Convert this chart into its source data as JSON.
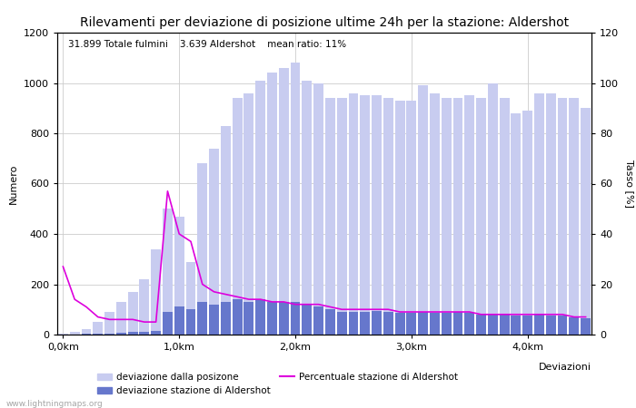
{
  "title": "Rilevamenti per deviazione di posizione ultime 24h per la stazione: Aldershot",
  "subtitle": "31.899 Totale fulmini    3.639 Aldershot    mean ratio: 11%",
  "xlabel": "Deviazioni",
  "ylabel_left": "Numero",
  "ylabel_right": "Tasso [%]",
  "watermark": "www.lightningmaps.org",
  "legend_labels": [
    "deviazione dalla posizone",
    "deviazione stazione di Aldershot",
    "Percentuale stazione di Aldershot"
  ],
  "legend_colors": [
    "#c8ccf0",
    "#6677cc",
    "#dd00dd"
  ],
  "xtick_labels": [
    "0,0km",
    "1,0km",
    "2,0km",
    "3,0km",
    "4,0km"
  ],
  "xtick_positions": [
    0,
    10,
    20,
    30,
    40
  ],
  "ylim_left": [
    0,
    1200
  ],
  "ylim_right": [
    0,
    120
  ],
  "yticks_left": [
    0,
    200,
    400,
    600,
    800,
    1000,
    1200
  ],
  "yticks_right": [
    0,
    20,
    40,
    60,
    80,
    100,
    120
  ],
  "light_bars": [
    5,
    10,
    20,
    50,
    90,
    130,
    170,
    220,
    340,
    500,
    470,
    290,
    680,
    740,
    830,
    940,
    960,
    1010,
    1040,
    1060,
    1080,
    1010,
    1000,
    940,
    940,
    960,
    950,
    950,
    940,
    930,
    930,
    990,
    960,
    940,
    940,
    950,
    940,
    1000,
    940,
    880,
    890,
    960,
    960,
    940,
    940,
    900
  ],
  "dark_bars": [
    1,
    1,
    2,
    3,
    5,
    8,
    10,
    12,
    15,
    90,
    110,
    100,
    130,
    120,
    130,
    140,
    130,
    140,
    130,
    130,
    130,
    120,
    110,
    100,
    90,
    90,
    90,
    95,
    90,
    85,
    85,
    90,
    85,
    85,
    90,
    85,
    80,
    80,
    80,
    75,
    75,
    80,
    75,
    75,
    70,
    65
  ],
  "ratio_line": [
    27,
    14,
    11,
    7,
    6,
    6,
    6,
    5,
    5,
    57,
    40,
    37,
    20,
    17,
    16,
    15,
    14,
    14,
    13,
    13,
    12,
    12,
    12,
    11,
    10,
    10,
    10,
    10,
    10,
    9,
    9,
    9,
    9,
    9,
    9,
    9,
    8,
    8,
    8,
    8,
    8,
    8,
    8,
    8,
    7,
    7
  ],
  "background_color": "#ffffff",
  "grid_color": "#cccccc",
  "title_fontsize": 10,
  "label_fontsize": 8,
  "tick_fontsize": 8,
  "subtitle_fontsize": 7.5
}
